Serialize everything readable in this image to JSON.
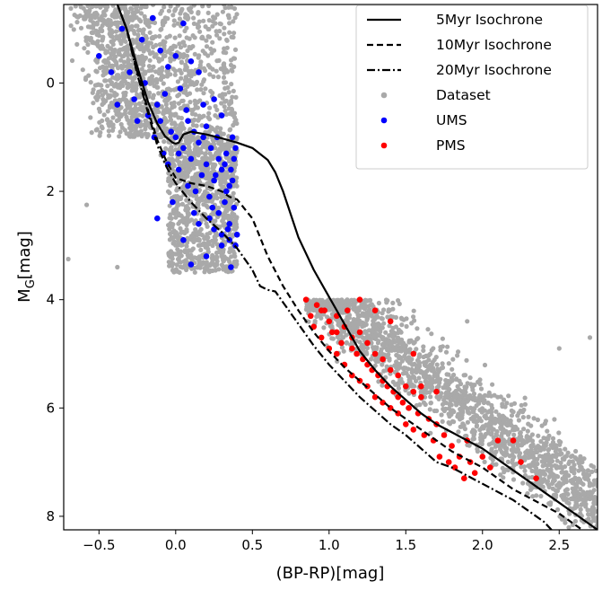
{
  "chart_data": {
    "type": "scatter",
    "xlabel": "(BP-RP)[mag]",
    "ylabel_main": "M",
    "ylabel_sub": "G",
    "ylabel_unit": "[mag]",
    "xlim": [
      -0.73,
      2.75
    ],
    "ylim": [
      8.25,
      -1.45
    ],
    "y_inverted": true,
    "grid": false,
    "legend_position": "top-right",
    "x_ticks": [
      {
        "value": -0.5,
        "label": "−0.5"
      },
      {
        "value": 0.0,
        "label": "0.0"
      },
      {
        "value": 0.5,
        "label": "0.5"
      },
      {
        "value": 1.0,
        "label": "1.0"
      },
      {
        "value": 1.5,
        "label": "1.5"
      },
      {
        "value": 2.0,
        "label": "2.0"
      },
      {
        "value": 2.5,
        "label": "2.5"
      }
    ],
    "y_ticks": [
      {
        "value": 0,
        "label": "0"
      },
      {
        "value": 2,
        "label": "2"
      },
      {
        "value": 4,
        "label": "4"
      },
      {
        "value": 6,
        "label": "6"
      },
      {
        "value": 8,
        "label": "8"
      }
    ],
    "colors": {
      "dataset": "#a9a9a9",
      "ums": "#0000ff",
      "pms": "#ff0000",
      "line": "#000000"
    },
    "lines": [
      {
        "name": "5Myr Isochrone",
        "style": "solid",
        "x": [
          -0.38,
          -0.32,
          -0.25,
          -0.18,
          -0.12,
          -0.07,
          -0.02,
          0.0,
          0.02,
          0.05,
          0.1,
          0.2,
          0.3,
          0.4,
          0.5,
          0.6,
          0.65,
          0.7,
          0.8,
          0.9,
          1.0,
          1.1,
          1.2,
          1.3,
          1.4,
          1.5,
          1.6,
          1.7,
          1.8,
          1.9,
          2.0,
          2.1,
          2.2,
          2.3,
          2.4,
          2.5,
          2.6,
          2.7,
          2.75
        ],
        "y": [
          -1.45,
          -1.0,
          -0.3,
          0.35,
          0.75,
          0.98,
          1.1,
          1.12,
          1.1,
          0.95,
          0.9,
          0.95,
          1.02,
          1.1,
          1.2,
          1.42,
          1.65,
          2.0,
          2.85,
          3.45,
          3.95,
          4.45,
          4.95,
          5.3,
          5.6,
          5.85,
          6.1,
          6.3,
          6.45,
          6.6,
          6.75,
          6.95,
          7.15,
          7.35,
          7.55,
          7.75,
          7.95,
          8.15,
          8.25
        ]
      },
      {
        "name": "10Myr Isochrone",
        "style": "dashed",
        "x": [
          -0.38,
          -0.32,
          -0.25,
          -0.18,
          -0.12,
          -0.06,
          0.0,
          0.1,
          0.2,
          0.3,
          0.35,
          0.4,
          0.5,
          0.55,
          0.6,
          0.7,
          0.8,
          0.9,
          1.0,
          1.1,
          1.2,
          1.3,
          1.4,
          1.5,
          1.6,
          1.7,
          1.8,
          1.9,
          2.0,
          2.1,
          2.2,
          2.3,
          2.4,
          2.5,
          2.6,
          2.65
        ],
        "y": [
          -1.45,
          -1.0,
          -0.2,
          0.5,
          1.05,
          1.45,
          1.75,
          1.85,
          1.9,
          2.0,
          2.1,
          2.15,
          2.5,
          2.85,
          3.2,
          3.75,
          4.2,
          4.6,
          4.95,
          5.25,
          5.5,
          5.75,
          6.0,
          6.2,
          6.4,
          6.6,
          6.8,
          6.95,
          7.1,
          7.3,
          7.5,
          7.65,
          7.8,
          7.95,
          8.15,
          8.25
        ]
      },
      {
        "name": "20Myr Isochrone",
        "style": "dashdot",
        "x": [
          -0.38,
          -0.32,
          -0.25,
          -0.18,
          -0.12,
          -0.06,
          0.0,
          0.1,
          0.2,
          0.3,
          0.4,
          0.5,
          0.55,
          0.6,
          0.65,
          0.7,
          0.8,
          0.9,
          1.0,
          1.1,
          1.2,
          1.3,
          1.4,
          1.5,
          1.6,
          1.7,
          1.8,
          1.9,
          2.0,
          2.1,
          2.2,
          2.3,
          2.4,
          2.45
        ],
        "y": [
          -1.45,
          -1.0,
          -0.15,
          0.55,
          1.15,
          1.55,
          1.85,
          2.2,
          2.5,
          2.75,
          3.05,
          3.45,
          3.75,
          3.82,
          3.85,
          4.05,
          4.45,
          4.85,
          5.2,
          5.5,
          5.8,
          6.05,
          6.3,
          6.5,
          6.75,
          7.0,
          7.1,
          7.25,
          7.4,
          7.55,
          7.7,
          7.9,
          8.1,
          8.25
        ]
      }
    ],
    "legend": [
      {
        "name": "5Myr Isochrone",
        "kind": "line",
        "style": "solid"
      },
      {
        "name": "10Myr Isochrone",
        "kind": "line",
        "style": "dashed"
      },
      {
        "name": "20Myr Isochrone",
        "kind": "line",
        "style": "dashdot"
      },
      {
        "name": "Dataset",
        "kind": "marker",
        "color": "#a9a9a9"
      },
      {
        "name": "UMS",
        "kind": "marker",
        "color": "#0000ff"
      },
      {
        "name": "PMS",
        "kind": "marker",
        "color": "#ff0000"
      }
    ],
    "ums_points": {
      "x": [
        -0.5,
        -0.42,
        -0.38,
        -0.35,
        -0.3,
        -0.27,
        -0.25,
        -0.22,
        -0.2,
        -0.18,
        -0.15,
        -0.14,
        -0.12,
        -0.1,
        -0.1,
        -0.08,
        -0.07,
        -0.05,
        -0.05,
        -0.03,
        -0.02,
        0.0,
        0.0,
        0.02,
        0.03,
        0.05,
        0.05,
        0.07,
        0.08,
        0.1,
        0.1,
        0.12,
        0.13,
        0.15,
        0.15,
        0.17,
        0.18,
        0.2,
        0.2,
        0.22,
        0.23,
        0.25,
        0.25,
        0.27,
        0.28,
        0.3,
        0.3,
        0.32,
        0.33,
        0.35,
        0.35,
        0.37,
        0.38,
        0.39,
        0.4,
        -0.12,
        0.05,
        0.1,
        0.2,
        0.3,
        0.36,
        0.38,
        0.15,
        0.25,
        0.33,
        0.28,
        0.18,
        0.08,
        0.02,
        0.12,
        0.22,
        0.32,
        0.37,
        0.35,
        0.3,
        0.26,
        0.24,
        0.34,
        0.39,
        0.36
      ],
      "y": [
        -0.5,
        -0.2,
        0.4,
        -1.0,
        -0.2,
        0.3,
        0.7,
        -0.8,
        0.0,
        0.6,
        -1.2,
        1.0,
        0.4,
        -0.6,
        0.7,
        1.3,
        0.2,
        -0.3,
        1.5,
        0.9,
        2.2,
        -0.5,
        1.0,
        1.6,
        0.1,
        -1.1,
        1.2,
        0.5,
        1.9,
        -0.4,
        1.4,
        0.9,
        2.0,
        -0.2,
        1.1,
        1.7,
        0.4,
        0.8,
        1.5,
        2.1,
        1.2,
        0.3,
        1.8,
        1.0,
        2.4,
        0.6,
        1.6,
        2.2,
        1.3,
        1.9,
        2.6,
        1.0,
        2.3,
        3.0,
        2.8,
        2.5,
        2.9,
        3.35,
        3.2,
        3.0,
        3.4,
        1.4,
        2.6,
        2.7,
        2.0,
        1.4,
        1.0,
        0.7,
        1.3,
        2.4,
        2.5,
        1.5,
        1.8,
        2.9,
        2.8,
        1.7,
        2.3,
        2.7,
        1.2,
        1.6
      ]
    },
    "pms_points": {
      "x": [
        0.85,
        0.88,
        0.9,
        0.92,
        0.95,
        0.97,
        1.0,
        1.0,
        1.02,
        1.05,
        1.05,
        1.08,
        1.1,
        1.1,
        1.12,
        1.15,
        1.15,
        1.18,
        1.2,
        1.2,
        1.22,
        1.25,
        1.25,
        1.28,
        1.3,
        1.3,
        1.32,
        1.35,
        1.35,
        1.38,
        1.4,
        1.4,
        1.42,
        1.45,
        1.45,
        1.48,
        1.5,
        1.5,
        1.52,
        1.55,
        1.55,
        1.58,
        1.6,
        1.62,
        1.65,
        1.68,
        1.7,
        1.72,
        1.75,
        1.78,
        1.8,
        1.82,
        1.85,
        1.88,
        1.9,
        1.92,
        1.95,
        2.0,
        2.05,
        2.1,
        2.2,
        2.25,
        2.35,
        1.2,
        1.3,
        1.4,
        1.55,
        1.6,
        1.7,
        0.95,
        1.05,
        1.15,
        1.25,
        1.35,
        1.45
      ],
      "y": [
        4.0,
        4.3,
        4.5,
        4.1,
        4.7,
        4.2,
        4.4,
        4.9,
        4.6,
        4.3,
        5.0,
        4.8,
        4.5,
        5.2,
        4.2,
        4.7,
        5.4,
        5.0,
        4.6,
        5.5,
        5.1,
        4.8,
        5.6,
        5.3,
        5.0,
        5.8,
        5.4,
        5.1,
        5.9,
        5.6,
        5.3,
        6.0,
        5.7,
        5.4,
        6.1,
        5.9,
        5.6,
        6.3,
        6.0,
        5.7,
        6.4,
        6.1,
        5.8,
        6.5,
        6.2,
        6.6,
        6.3,
        6.9,
        6.5,
        7.0,
        6.7,
        7.1,
        6.9,
        7.3,
        6.6,
        7.0,
        7.2,
        6.9,
        7.1,
        6.6,
        6.6,
        7.0,
        7.3,
        4.0,
        4.2,
        4.4,
        5.0,
        5.6,
        5.7,
        4.2,
        4.6,
        4.9,
        5.2,
        5.5,
        5.8
      ]
    }
  }
}
